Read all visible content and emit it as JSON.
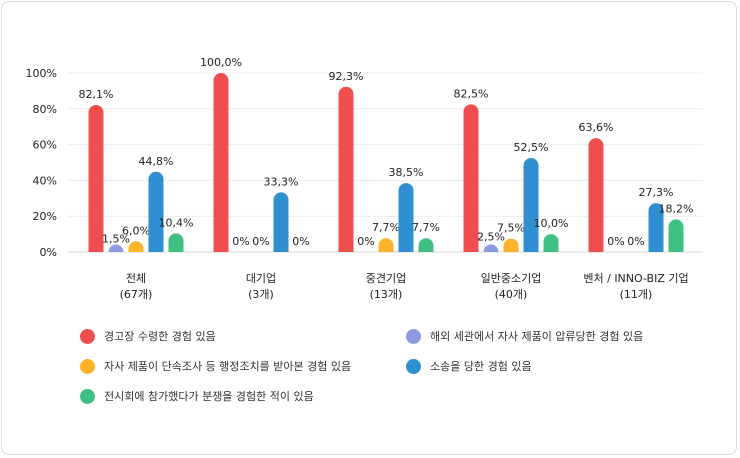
{
  "chart_data": {
    "type": "bar",
    "categories": [
      {
        "name": "전체",
        "count": "(67개)"
      },
      {
        "name": "대기업",
        "count": "(3개)"
      },
      {
        "name": "중견기업",
        "count": "(13개)"
      },
      {
        "name": "일반중소기업",
        "count": "(40개)"
      },
      {
        "name": "벤처 / INNO-BIZ 기업",
        "count": "(11개)"
      }
    ],
    "series": [
      {
        "name": "경고장 수령한 경험 있음",
        "color": "#f04e4e",
        "values": [
          82.1,
          100.0,
          92.3,
          82.5,
          63.6
        ],
        "labels": [
          "82,1%",
          "100,0%",
          "92,3%",
          "82,5%",
          "63,6%"
        ]
      },
      {
        "name": "해외 세관에서 자사 제품이 압류당한 경험 있음",
        "color": "#8f9be0",
        "values": [
          1.5,
          0,
          0,
          2.5,
          0
        ],
        "labels": [
          "1,5%",
          "0%",
          "0%",
          "2,5%",
          "0%"
        ]
      },
      {
        "name": "자사 제품이 단속조사 등 행정조치를 받아본 경험 있음",
        "color": "#fdb42a",
        "values": [
          6.0,
          0,
          7.7,
          7.5,
          0
        ],
        "labels": [
          "6,0%",
          "0%",
          "7,7%",
          "7,5%",
          "0%"
        ]
      },
      {
        "name": "소송을 당한 경험 있음",
        "color": "#2f8fd0",
        "values": [
          44.8,
          33.3,
          38.5,
          52.5,
          27.3
        ],
        "labels": [
          "44,8%",
          "33,3%",
          "38,5%",
          "52,5%",
          "27,3%"
        ]
      },
      {
        "name": "전시회에 참가했다가 분쟁을 경험한 적이 있음",
        "color": "#3fbf82",
        "values": [
          10.4,
          0,
          7.7,
          10.0,
          18.2
        ],
        "labels": [
          "10,4%",
          "0%",
          "7,7%",
          "10,0%",
          "18,2%"
        ]
      }
    ],
    "yticks": [
      "0%",
      "20%",
      "40%",
      "60%",
      "80%",
      "100%"
    ],
    "ylim": [
      0,
      100
    ],
    "grid": true,
    "legend_position": "bottom"
  }
}
